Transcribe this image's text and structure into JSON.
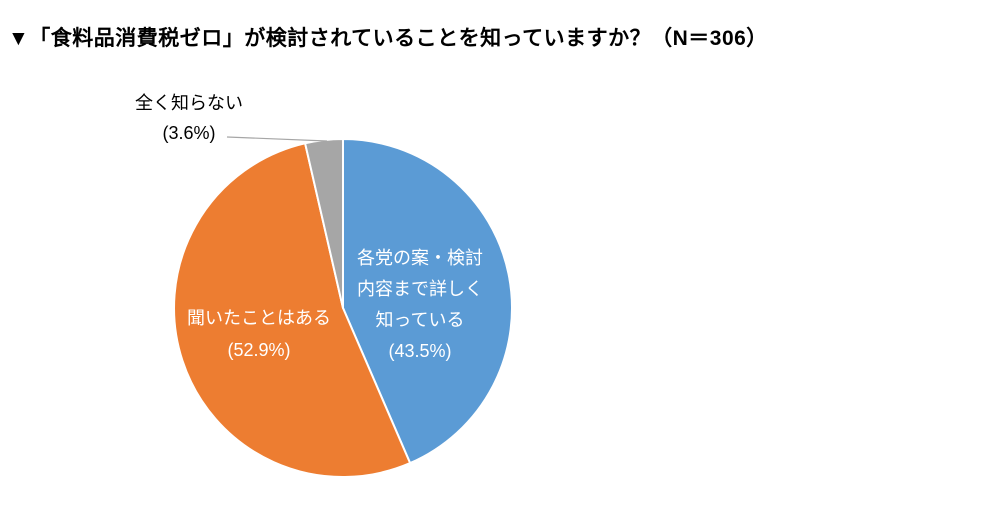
{
  "title": "▼「食料品消費税ゼロ」が検討されていることを知っていますか？（N＝306）",
  "chart_data": {
    "type": "pie",
    "title": "▼「食料品消費税ゼロ」が検討されていることを知っていますか？",
    "sample_size": 306,
    "sample_size_label": "N＝306",
    "start_angle_deg": 0,
    "direction": "clockwise",
    "legend_position": "none",
    "slices": [
      {
        "key": "know-details",
        "name": "各党の案・検討内容まで詳しく知っている",
        "percent": 43.5,
        "color": "#5B9BD5",
        "label_color": "#FFFFFF",
        "label_lines": [
          "各党の案・検討",
          "内容まで詳しく",
          "知っている",
          "(43.5%)"
        ]
      },
      {
        "key": "heard-of",
        "name": "聞いたことはある",
        "percent": 52.9,
        "color": "#ED7D31",
        "label_color": "#FFFFFF",
        "label_lines": [
          "聞いたことはある",
          "(52.9%)"
        ]
      },
      {
        "key": "unknown",
        "name": "全く知らない",
        "percent": 3.6,
        "color": "#A6A6A6",
        "label_color": "#000000",
        "label_lines": [
          "全く知らない",
          "(3.6%)"
        ]
      }
    ]
  },
  "colors": {
    "background": "#FFFFFF",
    "slice_border": "#FFFFFF",
    "leader_line": "#A6A6A6",
    "title_color": "#000000"
  }
}
